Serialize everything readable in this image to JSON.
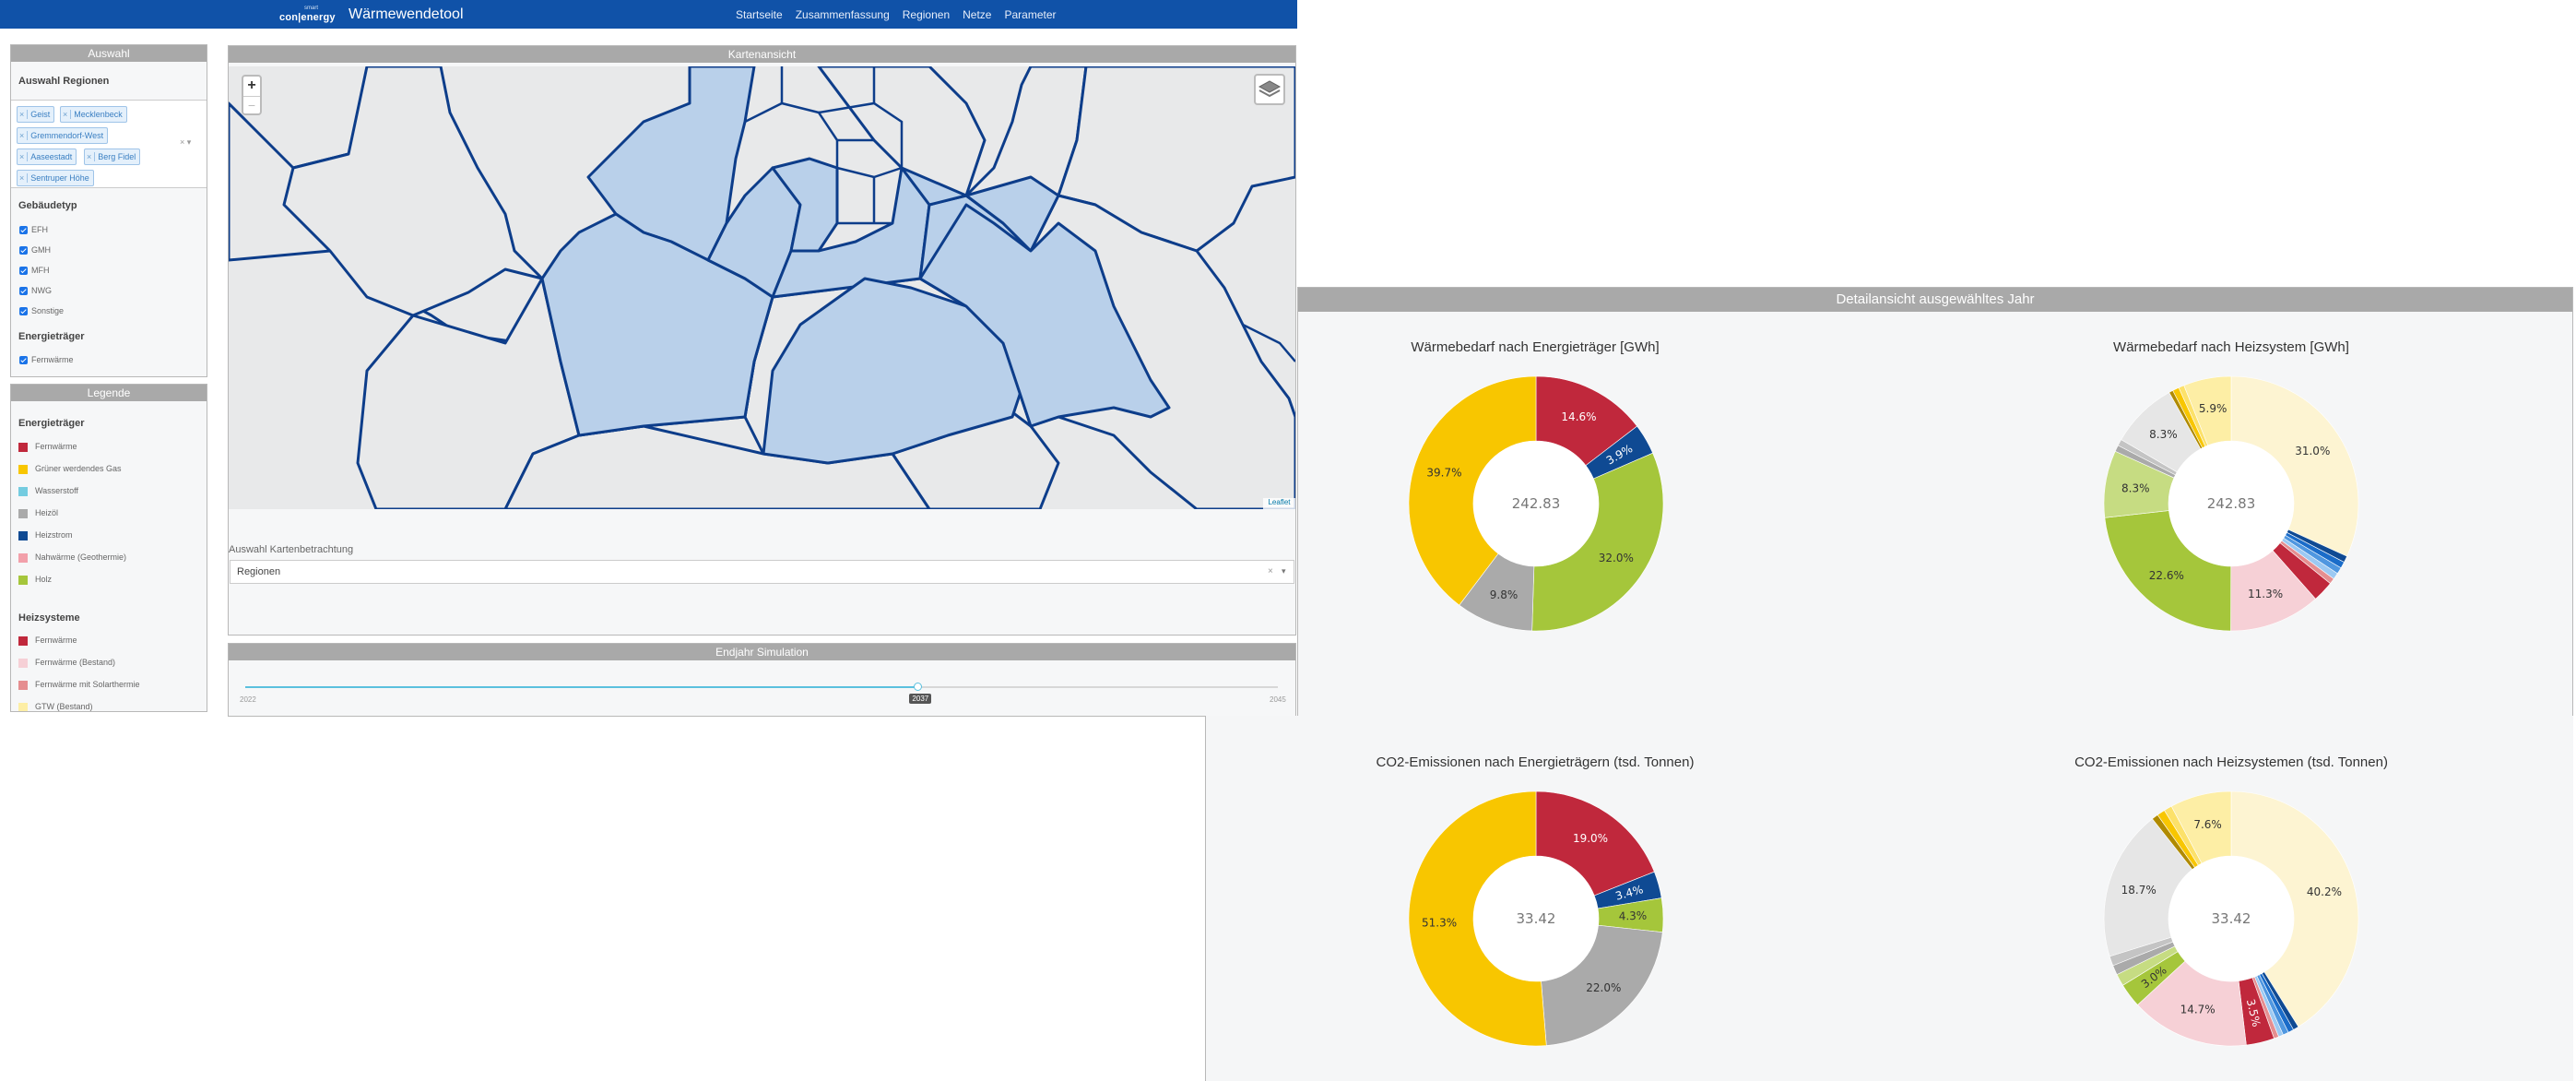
{
  "header": {
    "brand_small": "smart",
    "brand": "con|energy",
    "app_title": "Wärmewendetool",
    "nav": [
      "Startseite",
      "Zusammenfassung",
      "Regionen",
      "Netze",
      "Parameter"
    ]
  },
  "auswahl": {
    "title": "Auswahl",
    "regions_title": "Auswahl Regionen",
    "regions": [
      "Geist",
      "Mecklenbeck",
      "Gremmendorf-West",
      "Aaseestadt",
      "Berg Fidel",
      "Sentruper Höhe"
    ],
    "gebaeudetyp_title": "Gebäudetyp",
    "gebaeudetypen": [
      "EFH",
      "GMH",
      "MFH",
      "NWG",
      "Sonstige"
    ],
    "energietraeger_title": "Energieträger",
    "energietraeger": [
      "Fernwärme"
    ]
  },
  "legende": {
    "title": "Legende",
    "energietraeger_title": "Energieträger",
    "energietraeger": [
      {
        "label": "Fernwärme",
        "color": "#c0283c"
      },
      {
        "label": "Grüner werdendes Gas",
        "color": "#f8c600"
      },
      {
        "label": "Wasserstoff",
        "color": "#74cce0"
      },
      {
        "label": "Heizöl",
        "color": "#aaaaaa"
      },
      {
        "label": "Heizstrom",
        "color": "#0f4a93"
      },
      {
        "label": "Nahwärme (Geothermie)",
        "color": "#f2a0aa"
      },
      {
        "label": "Holz",
        "color": "#a5c63b"
      }
    ],
    "heizsysteme_title": "Heizsysteme",
    "heizsysteme": [
      {
        "label": "Fernwärme",
        "color": "#c0283c"
      },
      {
        "label": "Fernwärme (Bestand)",
        "color": "#f6d0d6"
      },
      {
        "label": "Fernwärme mit Solarthermie",
        "color": "#e58e90"
      },
      {
        "label": "GTW (Bestand)",
        "color": "#fdeea5"
      }
    ]
  },
  "karte": {
    "title": "Kartenansicht",
    "zoom_in": "+",
    "zoom_out": "−",
    "attribution": "Leaflet",
    "betrachtung_label": "Auswahl Kartenbetrachtung",
    "betrachtung_value": "Regionen",
    "clear": "×"
  },
  "simulation": {
    "title": "Endjahr Simulation",
    "min_label": "2022",
    "max_label": "2045",
    "value_label": "2037",
    "value": 2037,
    "min": 2022,
    "max": 2045
  },
  "detail": {
    "title": "Detailansicht ausgewähltes Jahr"
  },
  "chart_data": [
    {
      "type": "pie",
      "title": "Wärmebedarf nach Energieträger [GWh]",
      "center": "242.83",
      "slices": [
        {
          "value": 14.6,
          "label": "14.6%",
          "color": "#c0283c"
        },
        {
          "value": 3.9,
          "label": "3.9%",
          "color": "#0f4a93"
        },
        {
          "value": 32.0,
          "label": "32.0%",
          "color": "#a5c63b"
        },
        {
          "value": 9.8,
          "label": "9.8%",
          "color": "#aaaaaa"
        },
        {
          "value": 39.7,
          "label": "39.7%",
          "color": "#f8c600"
        }
      ]
    },
    {
      "type": "pie",
      "title": "Wärmebedarf nach Heizsystem [GWh]",
      "center": "242.83",
      "slices": [
        {
          "value": 31.0,
          "label": "31.0%",
          "color": "#fdf4d2"
        },
        {
          "value": 0.8,
          "label": "",
          "color": "#0f4a93"
        },
        {
          "value": 0.8,
          "label": "",
          "color": "#1a6cc9"
        },
        {
          "value": 0.8,
          "label": "",
          "color": "#4f97e0"
        },
        {
          "value": 0.8,
          "label": "",
          "color": "#9cc9f2"
        },
        {
          "value": 0.7,
          "label": "",
          "color": "#e58e90"
        },
        {
          "value": 2.6,
          "label": "",
          "color": "#c0283c"
        },
        {
          "value": 11.3,
          "label": "11.3%",
          "color": "#f6d0d6"
        },
        {
          "value": 22.6,
          "label": "22.6%",
          "color": "#a5c63b"
        },
        {
          "value": 8.3,
          "label": "8.3%",
          "color": "#c6dc82"
        },
        {
          "value": 0.8,
          "label": "",
          "color": "#aaaaaa"
        },
        {
          "value": 0.8,
          "label": "",
          "color": "#c4c4c4"
        },
        {
          "value": 8.3,
          "label": "8.3%",
          "color": "#e6e6e6"
        },
        {
          "value": 0.5,
          "label": "",
          "color": "#b08a00"
        },
        {
          "value": 0.8,
          "label": "",
          "color": "#f8c600"
        },
        {
          "value": 0.7,
          "label": "",
          "color": "#fce16a"
        },
        {
          "value": 5.9,
          "label": "5.9%",
          "color": "#fdeea5"
        }
      ]
    },
    {
      "type": "pie",
      "title": "CO2-Emissionen nach Energieträgern (tsd. Tonnen)",
      "center": "33.42",
      "slices": [
        {
          "value": 19.0,
          "label": "19.0%",
          "color": "#c0283c"
        },
        {
          "value": 3.4,
          "label": "3.4%",
          "color": "#0f4a93"
        },
        {
          "value": 4.3,
          "label": "4.3%",
          "color": "#a5c63b"
        },
        {
          "value": 22.0,
          "label": "22.0%",
          "color": "#aaaaaa"
        },
        {
          "value": 51.3,
          "label": "51.3%",
          "color": "#f8c600"
        }
      ]
    },
    {
      "type": "pie",
      "title": "CO2-Emissionen nach Heizsystemen (tsd. Tonnen)",
      "center": "33.42",
      "slices": [
        {
          "value": 40.2,
          "label": "40.2%",
          "color": "#fdf4d2"
        },
        {
          "value": 0.7,
          "label": "",
          "color": "#0f4a93"
        },
        {
          "value": 0.7,
          "label": "",
          "color": "#1a6cc9"
        },
        {
          "value": 0.7,
          "label": "",
          "color": "#4f97e0"
        },
        {
          "value": 0.6,
          "label": "",
          "color": "#9cc9f2"
        },
        {
          "value": 0.6,
          "label": "",
          "color": "#e58e90"
        },
        {
          "value": 3.5,
          "label": "3.5%",
          "color": "#c0283c"
        },
        {
          "value": 14.7,
          "label": "14.7%",
          "color": "#f6d0d6"
        },
        {
          "value": 3.0,
          "label": "3.0%",
          "color": "#a5c63b"
        },
        {
          "value": 1.5,
          "label": "",
          "color": "#c6dc82"
        },
        {
          "value": 1.2,
          "label": "",
          "color": "#aaaaaa"
        },
        {
          "value": 1.2,
          "label": "",
          "color": "#c4c4c4"
        },
        {
          "value": 18.7,
          "label": "18.7%",
          "color": "#e6e6e6"
        },
        {
          "value": 0.8,
          "label": "",
          "color": "#b08a00"
        },
        {
          "value": 1.0,
          "label": "",
          "color": "#f8c600"
        },
        {
          "value": 1.0,
          "label": "",
          "color": "#fce16a"
        },
        {
          "value": 7.6,
          "label": "7.6%",
          "color": "#fdeea5"
        }
      ]
    }
  ]
}
